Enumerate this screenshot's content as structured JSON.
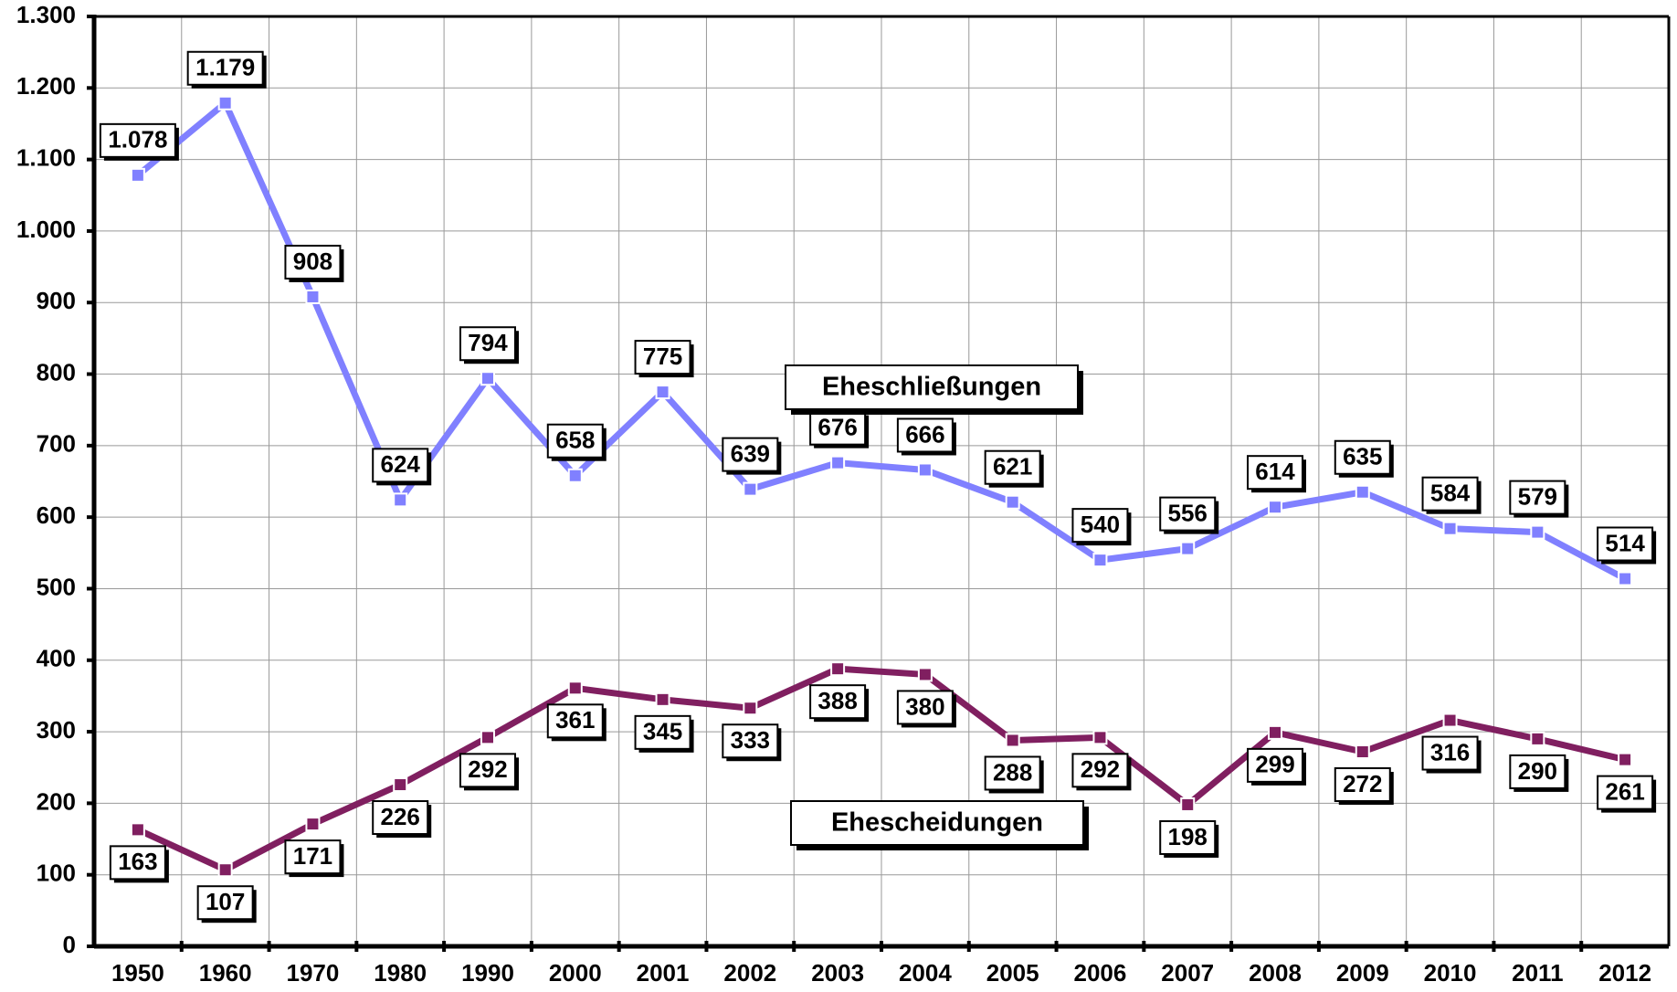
{
  "chart_data": {
    "type": "line",
    "categories": [
      "1950",
      "1960",
      "1970",
      "1980",
      "1990",
      "2000",
      "2001",
      "2002",
      "2003",
      "2004",
      "2005",
      "2006",
      "2007",
      "2008",
      "2009",
      "2010",
      "2011",
      "2012"
    ],
    "series": [
      {
        "name": "Eheschließungen",
        "color": "#8080ff",
        "values": [
          1078,
          1179,
          908,
          624,
          794,
          658,
          775,
          639,
          676,
          666,
          621,
          540,
          556,
          614,
          635,
          584,
          579,
          514
        ],
        "value_labels": [
          "1.078",
          "1.179",
          "908",
          "624",
          "794",
          "658",
          "775",
          "639",
          "676",
          "666",
          "621",
          "540",
          "556",
          "614",
          "635",
          "584",
          "579",
          "514"
        ]
      },
      {
        "name": "Ehescheidungen",
        "color": "#801f60",
        "values": [
          163,
          107,
          171,
          226,
          292,
          361,
          345,
          333,
          388,
          380,
          288,
          292,
          198,
          299,
          272,
          316,
          290,
          261
        ]
      }
    ],
    "ylim": [
      0,
      1300
    ],
    "yticks": [
      0,
      100,
      200,
      300,
      400,
      500,
      600,
      700,
      800,
      900,
      {
        "value": 1000,
        "label": "1.000"
      },
      {
        "value": 1100,
        "label": "1.100"
      },
      {
        "value": 1200,
        "label": "1.200"
      },
      {
        "value": 1300,
        "label": "1.300"
      }
    ],
    "grid": true
  }
}
